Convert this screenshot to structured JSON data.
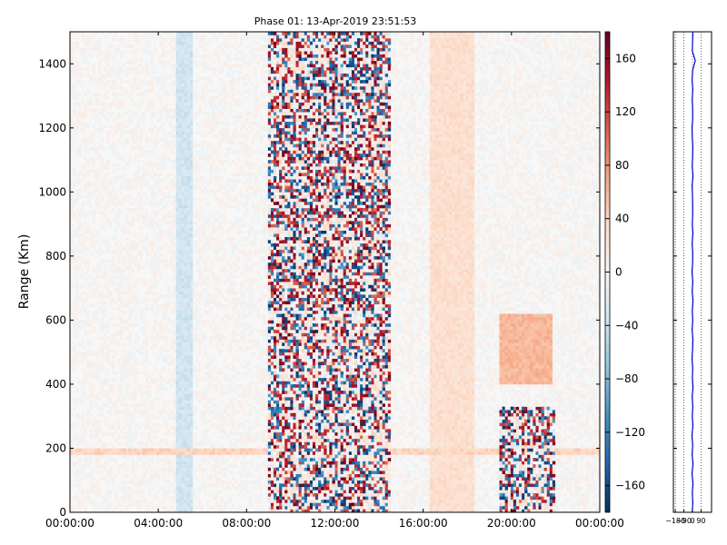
{
  "chart_data": [
    {
      "type": "heatmap",
      "title": "Phase 01: 13-Apr-2019 23:51:53",
      "xlabel": "",
      "ylabel": "Range (Km)",
      "x_ticks": [
        "00:00:00",
        "04:00:00",
        "08:00:00",
        "12:00:00",
        "16:00:00",
        "20:00:00",
        "00:00:00"
      ],
      "x_range_hours": [
        0,
        24
      ],
      "y_ticks": [
        0,
        200,
        400,
        600,
        800,
        1000,
        1200,
        1400
      ],
      "ylim": [
        0,
        1500
      ],
      "colorbar": {
        "ticks": [
          -160,
          -120,
          -80,
          -40,
          0,
          40,
          80,
          120,
          160
        ],
        "range": [
          -180,
          180
        ],
        "colormap": [
          "#053061",
          "#2166ac",
          "#4393c3",
          "#92c5de",
          "#d1e5f0",
          "#f7f7f7",
          "#fddbc7",
          "#f4a582",
          "#d6604d",
          "#b2182b",
          "#67001f"
        ]
      },
      "regions": [
        {
          "hours": [
            4.8,
            5.5
          ],
          "range_km": [
            0,
            1500
          ],
          "phase_deg": -35
        },
        {
          "hours": [
            9.0,
            14.5
          ],
          "range_km": [
            0,
            1500
          ],
          "phase_deg": "mixed -180..180"
        },
        {
          "hours": [
            16.3,
            18.3
          ],
          "range_km": [
            0,
            1500
          ],
          "phase_deg": 30
        },
        {
          "hours": [
            0,
            24
          ],
          "range_km": [
            180,
            200
          ],
          "phase_deg": 40
        },
        {
          "hours": [
            19.5,
            21.8
          ],
          "range_km": [
            400,
            620
          ],
          "phase_deg": 60
        },
        {
          "hours": [
            19.5,
            22.0
          ],
          "range_km": [
            0,
            330
          ],
          "phase_deg": "mixed -180..180"
        }
      ]
    },
    {
      "type": "line",
      "title": "",
      "xlabel": "",
      "ylabel": "",
      "x_ticks": [
        -180,
        -90,
        0,
        90
      ],
      "xlim": [
        -200,
        200
      ],
      "ylim": [
        0,
        1500
      ],
      "series": [
        {
          "color": "#0000cc",
          "x": [
            -3,
            4,
            -2,
            6,
            -5,
            2,
            7,
            -4,
            3,
            -6,
            5,
            -2,
            4,
            -3,
            6,
            -1,
            3,
            -5,
            2,
            5,
            -4,
            3,
            -2,
            6,
            -3,
            4,
            -5,
            2,
            3,
            -4,
            5,
            -2,
            3,
            2,
            0,
            -4,
            6,
            -3,
            2,
            4,
            -2,
            -5,
            3,
            2,
            -3,
            4,
            -4,
            2,
            30,
            -2,
            5
          ],
          "y": [
            0,
            30,
            60,
            90,
            120,
            140,
            150,
            180,
            210,
            240,
            270,
            300,
            330,
            360,
            390,
            420,
            450,
            480,
            510,
            540,
            570,
            600,
            630,
            660,
            690,
            720,
            750,
            780,
            810,
            840,
            870,
            900,
            930,
            960,
            990,
            1020,
            1050,
            1080,
            1110,
            1140,
            1170,
            1200,
            1230,
            1260,
            1290,
            1320,
            1350,
            1380,
            1410,
            1440,
            1500
          ]
        }
      ]
    }
  ]
}
